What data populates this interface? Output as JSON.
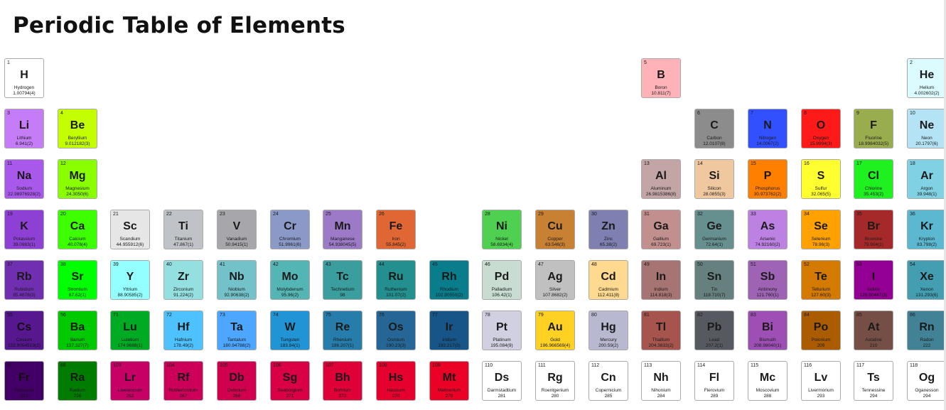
{
  "title": "Periodic Table of Elements",
  "elements": [
    {
      "n": "1",
      "s": "H",
      "name": "Hydrogen",
      "m": "1.00794(4)",
      "row": 1,
      "col": 1,
      "color": "#ffffff"
    },
    {
      "n": "2",
      "s": "He",
      "name": "Helium",
      "m": "4.002602(2)",
      "row": 1,
      "col": 18,
      "color": "#dcfbff"
    },
    {
      "n": "5",
      "s": "B",
      "name": "Boron",
      "m": "10.811(7)",
      "row": 1,
      "col": 13,
      "color": "#ffb3b8"
    },
    {
      "n": "3",
      "s": "Li",
      "name": "Lithium",
      "m": "6.941(2)",
      "row": 2,
      "col": 1,
      "color": "#c57cf7"
    },
    {
      "n": "4",
      "s": "Be",
      "name": "Beryllium",
      "m": "9.012182(3)",
      "row": 2,
      "col": 2,
      "color": "#c3ff00"
    },
    {
      "n": "6",
      "s": "C",
      "name": "Carbon",
      "m": "12.0107(8)",
      "row": 2,
      "col": 14,
      "color": "#8c8c8c"
    },
    {
      "n": "7",
      "s": "N",
      "name": "Nitrogen",
      "m": "14.0067(2)",
      "row": 2,
      "col": 15,
      "color": "#3350ff"
    },
    {
      "n": "8",
      "s": "O",
      "name": "Oxygen",
      "m": "15.9994(3)",
      "row": 2,
      "col": 16,
      "color": "#ff1a1a"
    },
    {
      "n": "9",
      "s": "F",
      "name": "Fluorine",
      "m": "18.9984032(5)",
      "row": 2,
      "col": 17,
      "color": "#9aad4e"
    },
    {
      "n": "10",
      "s": "Ne",
      "name": "Neon",
      "m": "20.1797(6)",
      "row": 2,
      "col": 18,
      "color": "#b3e3f5"
    },
    {
      "n": "11",
      "s": "Na",
      "name": "Sodium",
      "m": "22.98976928(2)",
      "row": 3,
      "col": 1,
      "color": "#a859ec"
    },
    {
      "n": "12",
      "s": "Mg",
      "name": "Magnesium",
      "m": "24.3050(6)",
      "row": 3,
      "col": 2,
      "color": "#8aff00"
    },
    {
      "n": "13",
      "s": "Al",
      "name": "Aluminum",
      "m": "26.9815386(8)",
      "row": 3,
      "col": 13,
      "color": "#c3a5a5"
    },
    {
      "n": "14",
      "s": "Si",
      "name": "Silicon",
      "m": "28.0855(3)",
      "row": 3,
      "col": 14,
      "color": "#f0c8a0"
    },
    {
      "n": "15",
      "s": "P",
      "name": "Phosphorus",
      "m": "30.973762(2)",
      "row": 3,
      "col": 15,
      "color": "#ff8000"
    },
    {
      "n": "16",
      "s": "S",
      "name": "Sulfur",
      "m": "32.065(5)",
      "row": 3,
      "col": 16,
      "color": "#ffff30"
    },
    {
      "n": "17",
      "s": "Cl",
      "name": "Chlorine",
      "m": "35.453(2)",
      "row": 3,
      "col": 17,
      "color": "#1ff01f"
    },
    {
      "n": "18",
      "s": "Ar",
      "name": "Argon",
      "m": "39.948(1)",
      "row": 3,
      "col": 18,
      "color": "#80d1e3"
    },
    {
      "n": "19",
      "s": "K",
      "name": "Potassium",
      "m": "39.0983(1)",
      "row": 4,
      "col": 1,
      "color": "#8f40d4"
    },
    {
      "n": "20",
      "s": "Ca",
      "name": "Calcium",
      "m": "40.078(4)",
      "row": 4,
      "col": 2,
      "color": "#3dff00"
    },
    {
      "n": "21",
      "s": "Sc",
      "name": "Scandium",
      "m": "44.955912(6)",
      "row": 4,
      "col": 3,
      "color": "#e6e6e6"
    },
    {
      "n": "22",
      "s": "Ti",
      "name": "Titanium",
      "m": "47.867(1)",
      "row": 4,
      "col": 4,
      "color": "#bfc2c7"
    },
    {
      "n": "23",
      "s": "V",
      "name": "Vanadium",
      "m": "50.9415(1)",
      "row": 4,
      "col": 5,
      "color": "#a6a6ab"
    },
    {
      "n": "24",
      "s": "Cr",
      "name": "Chromium",
      "m": "51.9961(6)",
      "row": 4,
      "col": 6,
      "color": "#8a99c7"
    },
    {
      "n": "25",
      "s": "Mn",
      "name": "Manganese",
      "m": "54.938045(5)",
      "row": 4,
      "col": 7,
      "color": "#9c7ac7"
    },
    {
      "n": "26",
      "s": "Fe",
      "name": "Iron",
      "m": "55.845(2)",
      "row": 4,
      "col": 8,
      "color": "#e06633"
    },
    {
      "n": "28",
      "s": "Ni",
      "name": "Nickel",
      "m": "58.6934(4)",
      "row": 4,
      "col": 10,
      "color": "#50d050"
    },
    {
      "n": "29",
      "s": "Cu",
      "name": "Copper",
      "m": "63.546(3)",
      "row": 4,
      "col": 11,
      "color": "#c88033"
    },
    {
      "n": "30",
      "s": "Zn",
      "name": "Zinc",
      "m": "65.38(2)",
      "row": 4,
      "col": 12,
      "color": "#7d80b0"
    },
    {
      "n": "31",
      "s": "Ga",
      "name": "Gallium",
      "m": "69.723(1)",
      "row": 4,
      "col": 13,
      "color": "#c28f8f"
    },
    {
      "n": "32",
      "s": "Ge",
      "name": "Germanium",
      "m": "72.64(1)",
      "row": 4,
      "col": 14,
      "color": "#668f8f"
    },
    {
      "n": "33",
      "s": "As",
      "name": "Arsenic",
      "m": "74.92160(2)",
      "row": 4,
      "col": 15,
      "color": "#bd80e3"
    },
    {
      "n": "34",
      "s": "Se",
      "name": "Selenium",
      "m": "78.96(3)",
      "row": 4,
      "col": 16,
      "color": "#ffa100"
    },
    {
      "n": "35",
      "s": "Br",
      "name": "Bromine",
      "m": "79.904(1)",
      "row": 4,
      "col": 17,
      "color": "#a62929"
    },
    {
      "n": "36",
      "s": "Kr",
      "name": "Krypton",
      "m": "83.798(2)",
      "row": 4,
      "col": 18,
      "color": "#5cb8d1"
    },
    {
      "n": "37",
      "s": "Rb",
      "name": "Rubidium",
      "m": "85.4678(3)",
      "row": 5,
      "col": 1,
      "color": "#702eb0"
    },
    {
      "n": "38",
      "s": "Sr",
      "name": "Strontium",
      "m": "87.62(1)",
      "row": 5,
      "col": 2,
      "color": "#00ff00"
    },
    {
      "n": "39",
      "s": "Y",
      "name": "Yttrium",
      "m": "88.90585(2)",
      "row": 5,
      "col": 3,
      "color": "#94ffff"
    },
    {
      "n": "40",
      "s": "Zr",
      "name": "Zirconium",
      "m": "91.224(2)",
      "row": 5,
      "col": 4,
      "color": "#94e0e0"
    },
    {
      "n": "41",
      "s": "Nb",
      "name": "Niobium",
      "m": "92.90638(2)",
      "row": 5,
      "col": 5,
      "color": "#73c2c9"
    },
    {
      "n": "42",
      "s": "Mo",
      "name": "Molybdenum",
      "m": "95.96(2)",
      "row": 5,
      "col": 6,
      "color": "#54b5b5"
    },
    {
      "n": "43",
      "s": "Tc",
      "name": "Technetium",
      "m": "98",
      "row": 5,
      "col": 7,
      "color": "#3b9e9e"
    },
    {
      "n": "44",
      "s": "Ru",
      "name": "Ruthenium",
      "m": "101.07(2)",
      "row": 5,
      "col": 8,
      "color": "#248f8f"
    },
    {
      "n": "45",
      "s": "Rh",
      "name": "Rhodium",
      "m": "102.90550(2)",
      "row": 5,
      "col": 9,
      "color": "#0a7d8c"
    },
    {
      "n": "46",
      "s": "Pd",
      "name": "Palladium",
      "m": "106.42(1)",
      "row": 5,
      "col": 10,
      "color": "#c8dcd2"
    },
    {
      "n": "47",
      "s": "Ag",
      "name": "Silver",
      "m": "107.8682(2)",
      "row": 5,
      "col": 11,
      "color": "#c0c0c0"
    },
    {
      "n": "48",
      "s": "Cd",
      "name": "Cadmium",
      "m": "112.411(8)",
      "row": 5,
      "col": 12,
      "color": "#ffd98f"
    },
    {
      "n": "49",
      "s": "In",
      "name": "Indium",
      "m": "114.818(3)",
      "row": 5,
      "col": 13,
      "color": "#a67573"
    },
    {
      "n": "50",
      "s": "Sn",
      "name": "Tin",
      "m": "118.710(7)",
      "row": 5,
      "col": 14,
      "color": "#668080"
    },
    {
      "n": "51",
      "s": "Sb",
      "name": "Antimony",
      "m": "121.760(1)",
      "row": 5,
      "col": 15,
      "color": "#9e63b5"
    },
    {
      "n": "52",
      "s": "Te",
      "name": "Tellurium",
      "m": "127.60(3)",
      "row": 5,
      "col": 16,
      "color": "#d47a00"
    },
    {
      "n": "53",
      "s": "I",
      "name": "Iodine",
      "m": "126.90447(3)",
      "row": 5,
      "col": 17,
      "color": "#940094"
    },
    {
      "n": "54",
      "s": "Xe",
      "name": "Xenon",
      "m": "131.293(6)",
      "row": 5,
      "col": 18,
      "color": "#429eb0"
    },
    {
      "n": "55",
      "s": "Cs",
      "name": "Cesium",
      "m": "132.9054519(2)",
      "row": 6,
      "col": 1,
      "color": "#57178f"
    },
    {
      "n": "56",
      "s": "Ba",
      "name": "Barium",
      "m": "137.327(7)",
      "row": 6,
      "col": 2,
      "color": "#00c900"
    },
    {
      "n": "71",
      "s": "Lu",
      "name": "Lutetium",
      "m": "174.9668(1)",
      "row": 6,
      "col": 3,
      "color": "#00ab24"
    },
    {
      "n": "72",
      "s": "Hf",
      "name": "Hafnium",
      "m": "178.49(2)",
      "row": 6,
      "col": 4,
      "color": "#4dc2ff"
    },
    {
      "n": "73",
      "s": "Ta",
      "name": "Tantalum",
      "m": "180.94788(2)",
      "row": 6,
      "col": 5,
      "color": "#4da6ff"
    },
    {
      "n": "74",
      "s": "W",
      "name": "Tungsten",
      "m": "183.84(1)",
      "row": 6,
      "col": 6,
      "color": "#2194d6"
    },
    {
      "n": "75",
      "s": "Re",
      "name": "Rhenium",
      "m": "186.207(1)",
      "row": 6,
      "col": 7,
      "color": "#267dab"
    },
    {
      "n": "76",
      "s": "Os",
      "name": "Osmium",
      "m": "190.23(3)",
      "row": 6,
      "col": 8,
      "color": "#266696"
    },
    {
      "n": "77",
      "s": "Ir",
      "name": "Iridium",
      "m": "192.217(3)",
      "row": 6,
      "col": 9,
      "color": "#175487"
    },
    {
      "n": "78",
      "s": "Pt",
      "name": "Platinum",
      "m": "195.084(9)",
      "row": 6,
      "col": 10,
      "color": "#d0d0e0"
    },
    {
      "n": "79",
      "s": "Au",
      "name": "Gold",
      "m": "196.966569(4)",
      "row": 6,
      "col": 11,
      "color": "#ffd123"
    },
    {
      "n": "80",
      "s": "Hg",
      "name": "Mercury",
      "m": "200.59(2)",
      "row": 6,
      "col": 12,
      "color": "#b8b8d0"
    },
    {
      "n": "81",
      "s": "Tl",
      "name": "Thallium",
      "m": "204.3833(2)",
      "row": 6,
      "col": 13,
      "color": "#a6544d"
    },
    {
      "n": "82",
      "s": "Pb",
      "name": "Lead",
      "m": "207.2(1)",
      "row": 6,
      "col": 14,
      "color": "#575961"
    },
    {
      "n": "83",
      "s": "Bi",
      "name": "Bismuth",
      "m": "208.98040(1)",
      "row": 6,
      "col": 15,
      "color": "#9e4fb5"
    },
    {
      "n": "84",
      "s": "Po",
      "name": "Polonium",
      "m": "209",
      "row": 6,
      "col": 16,
      "color": "#ab5c00"
    },
    {
      "n": "85",
      "s": "At",
      "name": "Astatine",
      "m": "210",
      "row": 6,
      "col": 17,
      "color": "#754f45"
    },
    {
      "n": "86",
      "s": "Rn",
      "name": "Radon",
      "m": "222",
      "row": 6,
      "col": 18,
      "color": "#428296"
    },
    {
      "n": "87",
      "s": "Fr",
      "name": "Francium",
      "m": "223",
      "row": 7,
      "col": 1,
      "color": "#420066"
    },
    {
      "n": "88",
      "s": "Ra",
      "name": "Radium",
      "m": "226",
      "row": 7,
      "col": 2,
      "color": "#007d00"
    },
    {
      "n": "103",
      "s": "Lr",
      "name": "Lawrencium",
      "m": "262",
      "row": 7,
      "col": 3,
      "color": "#c70066"
    },
    {
      "n": "104",
      "s": "Rf",
      "name": "Rutherfordium",
      "m": "267",
      "row": 7,
      "col": 4,
      "color": "#cc0059"
    },
    {
      "n": "105",
      "s": "Db",
      "name": "Dubnium",
      "m": "268",
      "row": 7,
      "col": 5,
      "color": "#d1004f"
    },
    {
      "n": "106",
      "s": "Sg",
      "name": "Seaborgium",
      "m": "271",
      "row": 7,
      "col": 6,
      "color": "#d90045"
    },
    {
      "n": "107",
      "s": "Bh",
      "name": "Bohrium",
      "m": "272",
      "row": 7,
      "col": 7,
      "color": "#e00038"
    },
    {
      "n": "108",
      "s": "Hs",
      "name": "Hassium",
      "m": "270",
      "row": 7,
      "col": 8,
      "color": "#e6002e"
    },
    {
      "n": "109",
      "s": "Mt",
      "name": "Meitnerium",
      "m": "276",
      "row": 7,
      "col": 9,
      "color": "#eb0026"
    },
    {
      "n": "110",
      "s": "Ds",
      "name": "Darmstadtium",
      "m": "281",
      "row": 7,
      "col": 10,
      "color": "#ffffff"
    },
    {
      "n": "111",
      "s": "Rg",
      "name": "Roentgenium",
      "m": "280",
      "row": 7,
      "col": 11,
      "color": "#ffffff"
    },
    {
      "n": "112",
      "s": "Cn",
      "name": "Copernicium",
      "m": "285",
      "row": 7,
      "col": 12,
      "color": "#ffffff"
    },
    {
      "n": "113",
      "s": "Nh",
      "name": "Nihonium",
      "m": "284",
      "row": 7,
      "col": 13,
      "color": "#ffffff"
    },
    {
      "n": "114",
      "s": "Fl",
      "name": "Flerovium",
      "m": "289",
      "row": 7,
      "col": 14,
      "color": "#ffffff"
    },
    {
      "n": "115",
      "s": "Mc",
      "name": "Moscovium",
      "m": "288",
      "row": 7,
      "col": 15,
      "color": "#ffffff"
    },
    {
      "n": "116",
      "s": "Lv",
      "name": "Livermorium",
      "m": "293",
      "row": 7,
      "col": 16,
      "color": "#ffffff"
    },
    {
      "n": "117",
      "s": "Ts",
      "name": "Tennessine",
      "m": "294",
      "row": 7,
      "col": 17,
      "color": "#ffffff"
    },
    {
      "n": "118",
      "s": "Og",
      "name": "Oganesson",
      "m": "294",
      "row": 7,
      "col": 18,
      "color": "#ffffff"
    }
  ]
}
